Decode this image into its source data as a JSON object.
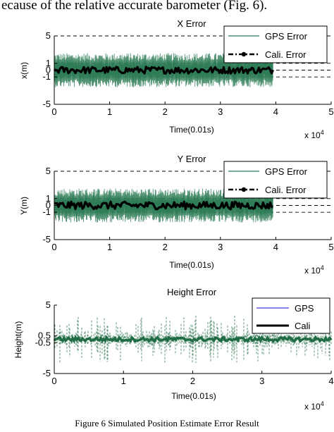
{
  "page": {
    "header_text": "ecause of the relative accurate barometer (Fig. 6).",
    "caption": "Figure 6    Simulated Position Estimate Error Result"
  },
  "colors": {
    "gps_green": "#2f7d57",
    "gps_blue": "#3a3adf",
    "cali_black": "#000000",
    "height_noise": "#1f6b44"
  },
  "chart_data": [
    {
      "type": "line",
      "title": "X Error",
      "xlabel": "Time(0.01s)",
      "ylabel": "x(m)",
      "x_multiplier_label": "x 10",
      "x_multiplier_exp": "4",
      "xlim": [
        0,
        5
      ],
      "ylim": [
        -5,
        5
      ],
      "x_ticks": [
        "0",
        "1",
        "2",
        "3",
        "4",
        "5"
      ],
      "y_ticks": [
        {
          "v": 5,
          "label": "5"
        },
        {
          "v": 1,
          "label": "1"
        },
        {
          "v": 0,
          "label": "0"
        },
        {
          "v": -1,
          "label": "-1"
        },
        {
          "v": -5,
          "label": "-5"
        }
      ],
      "dashed_levels": [
        5,
        1,
        0,
        -1,
        -5
      ],
      "grid": false,
      "legend_position": "top-right",
      "series": [
        {
          "name": "GPS Error",
          "style": "gps-green",
          "x_range": [
            0,
            3.95
          ],
          "amplitude": 2.5
        },
        {
          "name": "Cali. Error",
          "style": "cali-dashdot",
          "x_range": [
            0,
            3.95
          ],
          "amplitude": 0.5
        }
      ]
    },
    {
      "type": "line",
      "title": "Y Error",
      "xlabel": "Time(0.01s)",
      "ylabel": "Y(m)",
      "x_multiplier_label": "x 10",
      "x_multiplier_exp": "4",
      "xlim": [
        0,
        5
      ],
      "ylim": [
        -5,
        5
      ],
      "x_ticks": [
        "0",
        "1",
        "2",
        "3",
        "4",
        "5"
      ],
      "y_ticks": [
        {
          "v": 5,
          "label": "5"
        },
        {
          "v": 1,
          "label": "1"
        },
        {
          "v": 0,
          "label": "0"
        },
        {
          "v": -1,
          "label": "-1"
        },
        {
          "v": -5,
          "label": "-5"
        }
      ],
      "dashed_levels": [
        5,
        1,
        0,
        -1,
        -5
      ],
      "grid": false,
      "legend_position": "top-right",
      "series": [
        {
          "name": "GPS Error",
          "style": "gps-green",
          "x_range": [
            0,
            3.95
          ],
          "amplitude": 2.5
        },
        {
          "name": "Cali. Error",
          "style": "cali-dashdot",
          "x_range": [
            0,
            3.95
          ],
          "amplitude": 0.55
        }
      ]
    },
    {
      "type": "line",
      "title": "Height Error",
      "xlabel": "Time(0.01s)",
      "ylabel": "Height(m)",
      "x_multiplier_label": "x 10",
      "x_multiplier_exp": "4",
      "xlim": [
        0,
        4
      ],
      "ylim": [
        -5,
        5
      ],
      "x_ticks": [
        "0",
        "1",
        "2",
        "3",
        "4"
      ],
      "y_ticks": [
        {
          "v": 5,
          "label": "5"
        },
        {
          "v": 0.5,
          "label": "0.5"
        },
        {
          "v": -0.5,
          "label": "-0.5"
        },
        {
          "v": -5,
          "label": "-5"
        }
      ],
      "dashed_levels": [],
      "grid": false,
      "legend_position": "top-right",
      "series": [
        {
          "name": "GPS",
          "style": "gps-blue-dashed",
          "x_range": [
            0,
            4
          ],
          "amplitude": 3.5
        },
        {
          "name": "Cali",
          "style": "cali-thick",
          "x_range": [
            0,
            4
          ],
          "amplitude": 0.3
        }
      ]
    }
  ]
}
